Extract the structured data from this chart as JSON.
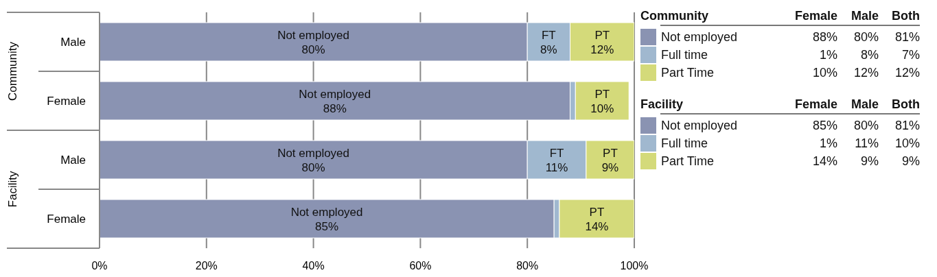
{
  "chart_data": {
    "type": "bar",
    "orientation": "horizontal",
    "stacked": true,
    "categories": [
      "Male",
      "Female",
      "Male",
      "Female"
    ],
    "annotations": [
      "Community",
      "Facility",
      "Community",
      "Female",
      "Male",
      "Both",
      "88%",
      "80%",
      "81%",
      "1%",
      "8%",
      "7%",
      "10%",
      "12%",
      "12%",
      "Facility",
      "Female",
      "Male",
      "Both",
      "85%",
      "80%",
      "81%",
      "1%",
      "11%",
      "10%",
      "14%",
      "9%",
      "9%"
    ],
    "series": [
      {
        "name": "Not employed",
        "color": "#8a93b2",
        "values": [
          80,
          88,
          80,
          85
        ],
        "value_labels": [
          "Not employed\n80%",
          "Not employed\n88%",
          "Not employed\n80%",
          "Not employed\n85%"
        ]
      },
      {
        "name": "Full time",
        "color": "#a0b8cf",
        "values": [
          8,
          1,
          11,
          1
        ],
        "value_labels": [
          "FT\n8%",
          null,
          "FT\n11%",
          null
        ]
      },
      {
        "name": "Part Time",
        "color": "#d4da7a",
        "values": [
          12,
          10,
          9,
          14
        ],
        "value_labels": [
          "PT\n12%",
          "PT\n10%",
          "PT\n9%",
          "PT\n14%"
        ]
      }
    ],
    "xlim": [
      0,
      100
    ],
    "xticks": [
      {
        "value": 0,
        "label": "0%"
      },
      {
        "value": 20,
        "label": "20%"
      },
      {
        "value": 40,
        "label": "40%"
      },
      {
        "value": 60,
        "label": "60%"
      },
      {
        "value": 80,
        "label": "80%"
      },
      {
        "value": 100,
        "label": "100%"
      }
    ],
    "grid": "x",
    "legend": "right"
  }
}
